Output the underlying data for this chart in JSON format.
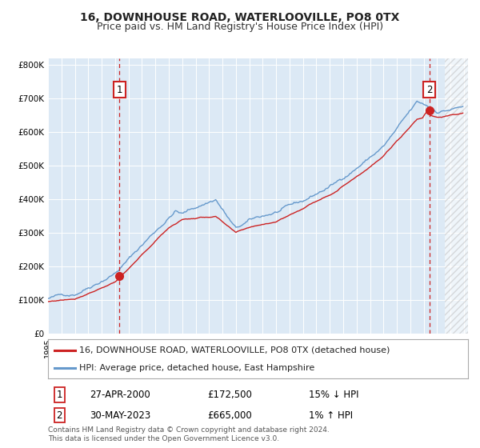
{
  "title": "16, DOWNHOUSE ROAD, WATERLOOVILLE, PO8 0TX",
  "subtitle": "Price paid vs. HM Land Registry's House Price Index (HPI)",
  "ylim": [
    0,
    820000
  ],
  "yticks": [
    0,
    100000,
    200000,
    300000,
    400000,
    500000,
    600000,
    700000,
    800000
  ],
  "ytick_labels": [
    "£0",
    "£100K",
    "£200K",
    "£300K",
    "£400K",
    "£500K",
    "£600K",
    "£700K",
    "£800K"
  ],
  "xlim_start": 1995.0,
  "xlim_end": 2026.3,
  "bg_color": "#dce9f5",
  "hpi_line_color": "#6699cc",
  "price_line_color": "#cc2222",
  "marker_color": "#cc2222",
  "vline_color": "#cc2222",
  "legend_label_price": "16, DOWNHOUSE ROAD, WATERLOOVILLE, PO8 0TX (detached house)",
  "legend_label_hpi": "HPI: Average price, detached house, East Hampshire",
  "sale1_date": "27-APR-2000",
  "sale1_price": "£172,500",
  "sale1_hpi": "15% ↓ HPI",
  "sale1_x": 2000.32,
  "sale1_y": 172500,
  "sale2_date": "30-MAY-2023",
  "sale2_price": "£665,000",
  "sale2_hpi": "1% ↑ HPI",
  "sale2_x": 2023.41,
  "sale2_y": 665000,
  "footer": "Contains HM Land Registry data © Crown copyright and database right 2024.\nThis data is licensed under the Open Government Licence v3.0.",
  "title_fontsize": 10,
  "subtitle_fontsize": 9,
  "tick_fontsize": 7.5,
  "legend_fontsize": 8,
  "footer_fontsize": 6.5
}
